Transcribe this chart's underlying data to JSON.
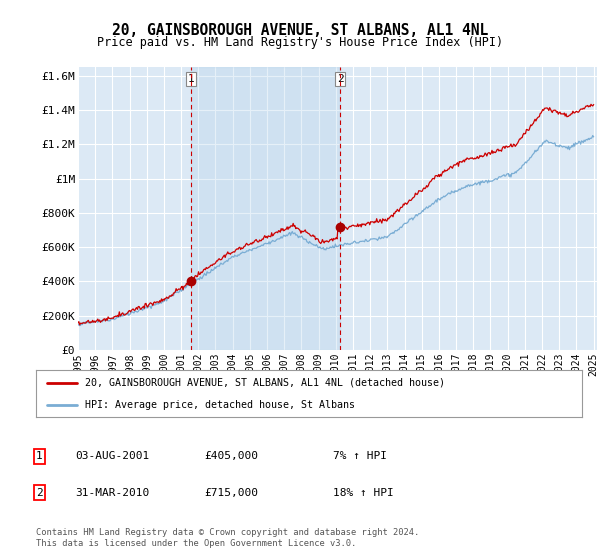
{
  "title": "20, GAINSBOROUGH AVENUE, ST ALBANS, AL1 4NL",
  "subtitle": "Price paid vs. HM Land Registry's House Price Index (HPI)",
  "background_color": "#ffffff",
  "plot_bg_color": "#dce9f5",
  "plot_bg_color2": "#c8ddf0",
  "grid_color": "#ffffff",
  "ylim": [
    0,
    1650000
  ],
  "yticks": [
    0,
    200000,
    400000,
    600000,
    800000,
    1000000,
    1200000,
    1400000,
    1600000
  ],
  "ytick_labels": [
    "£0",
    "£200K",
    "£400K",
    "£600K",
    "£800K",
    "£1M",
    "£1.2M",
    "£1.4M",
    "£1.6M"
  ],
  "x_start_year": 1995,
  "x_end_year": 2025,
  "sale1_year": 2001.58,
  "sale1_price": 405000,
  "sale2_year": 2010.25,
  "sale2_price": 715000,
  "red_line_color": "#cc0000",
  "blue_line_color": "#7aadd4",
  "sale_marker_color": "#aa0000",
  "vline_color": "#cc0000",
  "legend_label_red": "20, GAINSBOROUGH AVENUE, ST ALBANS, AL1 4NL (detached house)",
  "legend_label_blue": "HPI: Average price, detached house, St Albans",
  "table_row1": [
    "1",
    "03-AUG-2001",
    "£405,000",
    "7% ↑ HPI"
  ],
  "table_row2": [
    "2",
    "31-MAR-2010",
    "£715,000",
    "18% ↑ HPI"
  ],
  "footnote": "Contains HM Land Registry data © Crown copyright and database right 2024.\nThis data is licensed under the Open Government Licence v3.0."
}
